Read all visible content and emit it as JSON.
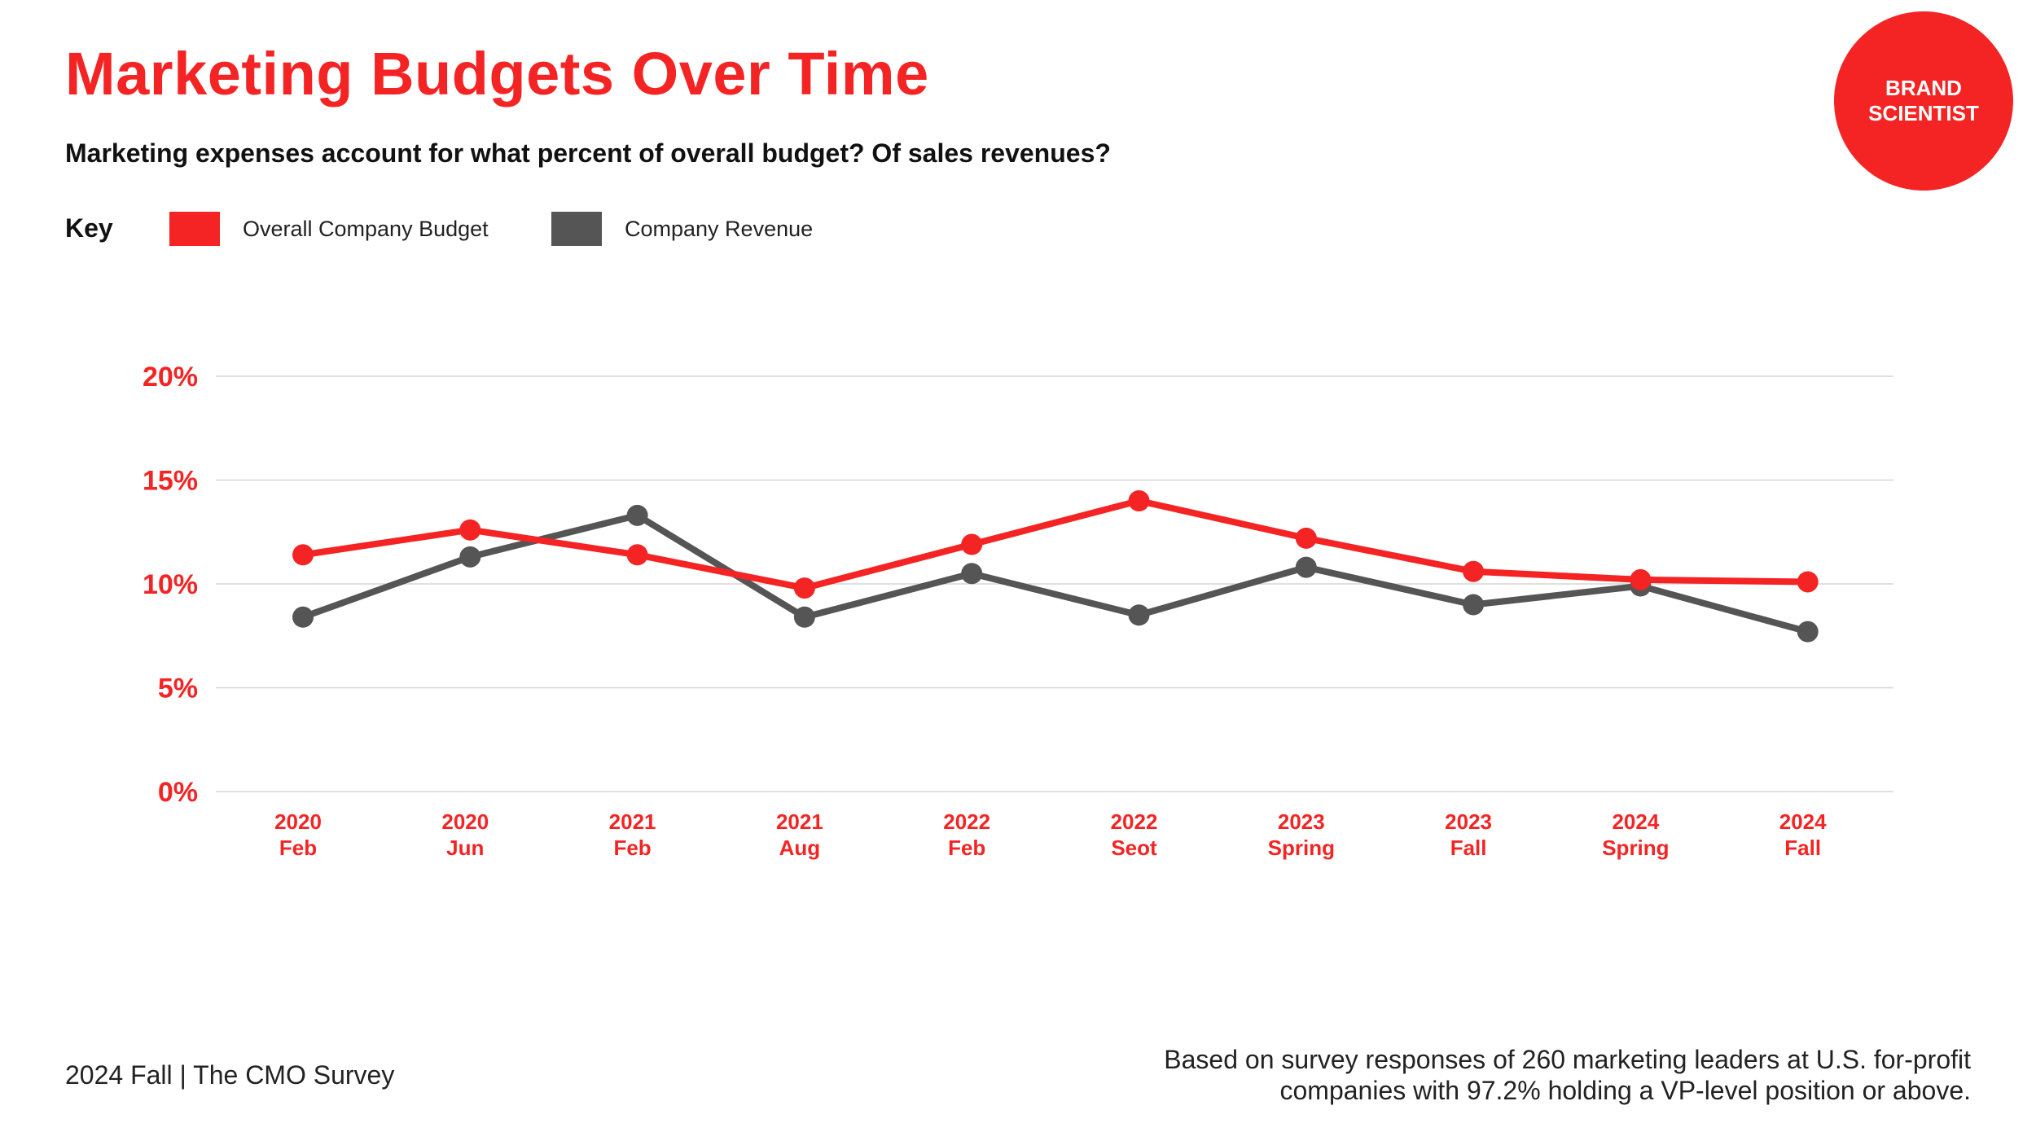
{
  "header": {
    "title": "Marketing Budgets Over Time",
    "subtitle": "Marketing expenses account for what percent of overall budget? Of sales revenues?"
  },
  "legend": {
    "key_label": "Key",
    "items": [
      {
        "label": "Overall Company Budget",
        "color": "#f42424"
      },
      {
        "label": "Company Revenue",
        "color": "#555555"
      }
    ]
  },
  "badge": {
    "line1": "BRAND",
    "line2": "SCIENTIST",
    "color": "#f42424"
  },
  "colors": {
    "accent": "#f42424",
    "gray": "#555555",
    "grid": "#d6d6d6"
  },
  "chart_data": {
    "type": "line",
    "title": "Marketing Budgets Over Time",
    "subtitle": "Marketing expenses account for what percent of overall budget? Of sales revenues?",
    "xlabel": "",
    "ylabel": "",
    "ylim": [
      0,
      20
    ],
    "y_ticks": [
      {
        "value": 0,
        "label": "0%"
      },
      {
        "value": 5,
        "label": "5%"
      },
      {
        "value": 10,
        "label": "10%"
      },
      {
        "value": 15,
        "label": "15%"
      },
      {
        "value": 20,
        "label": "20%"
      }
    ],
    "categories": [
      [
        "2020",
        "Feb"
      ],
      [
        "2020",
        "Jun"
      ],
      [
        "2021",
        "Feb"
      ],
      [
        "2021",
        "Aug"
      ],
      [
        "2022",
        "Feb"
      ],
      [
        "2022",
        "Seot"
      ],
      [
        "2023",
        "Spring"
      ],
      [
        "2023",
        "Fall"
      ],
      [
        "2024",
        "Spring"
      ],
      [
        "2024",
        "Fall"
      ]
    ],
    "series": [
      {
        "name": "Overall Company Budget",
        "color": "#f42424",
        "values": [
          11.4,
          12.6,
          11.4,
          9.8,
          11.9,
          14.0,
          12.2,
          10.6,
          10.2,
          10.1
        ]
      },
      {
        "name": "Company Revenue",
        "color": "#555555",
        "values": [
          8.4,
          11.3,
          13.3,
          8.4,
          10.5,
          8.5,
          10.8,
          9.0,
          9.9,
          7.7
        ]
      }
    ],
    "grid": true,
    "legend_position": "top-left"
  },
  "footer": {
    "left": "2024 Fall  |  The CMO Survey",
    "right_line1": "Based on survey responses of 260 marketing leaders at U.S. for-profit",
    "right_line2": "companies with 97.2% holding a VP-level position or above."
  }
}
